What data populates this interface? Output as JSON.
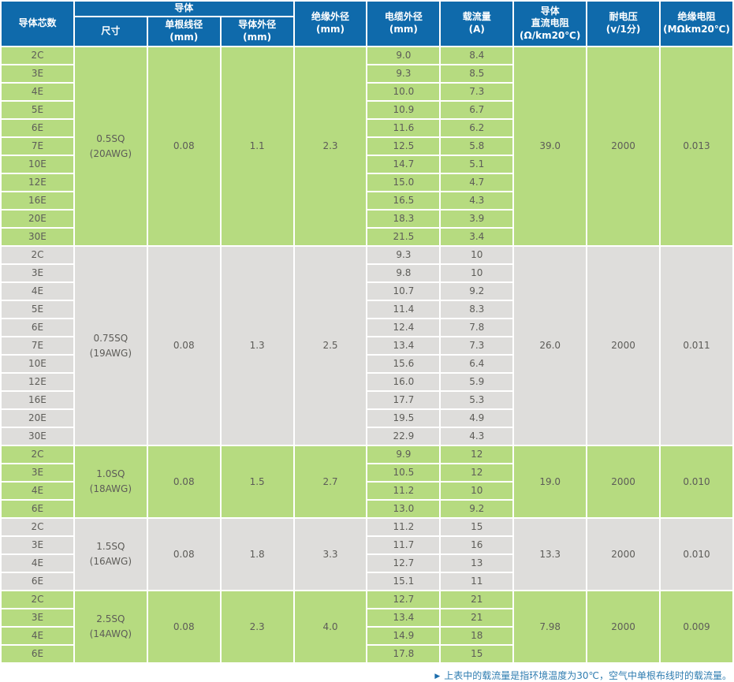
{
  "colors": {
    "header_blue": "#0f6aab",
    "green_row": "#b6db80",
    "gray_row": "#dedddb",
    "cell_text": "#5d5c58",
    "footnote_blue": "#2e7cb0"
  },
  "table": {
    "header": {
      "cores": "导体芯数",
      "conductor_group": "导体",
      "size": "尺寸",
      "strand_dia": "单根线径\n(mm)",
      "conductor_od": "导体外径\n(mm)",
      "insulation_od": "绝缘外径\n(mm)",
      "cable_od": "电缆外径\n(mm)",
      "ampacity": "载流量\n(A)",
      "dc_resistance": "导体\n直流电阻\n(Ω/km20℃)",
      "voltage": "耐电压\n(v/1分)",
      "insulation_res": "绝缘电阻\n(MΩkm20℃)"
    },
    "groups": [
      {
        "theme": "green",
        "size": "0.5SQ",
        "awg": "(20AWG)",
        "strand_dia": "0.08",
        "conductor_od": "1.1",
        "insulation_od": "2.3",
        "dc_resistance": "39.0",
        "voltage": "2000",
        "insulation_res": "0.013",
        "rows": [
          {
            "cores": "2C",
            "cable_od": "9.0",
            "ampacity": "8.4"
          },
          {
            "cores": "3E",
            "cable_od": "9.3",
            "ampacity": "8.5"
          },
          {
            "cores": "4E",
            "cable_od": "10.0",
            "ampacity": "7.3"
          },
          {
            "cores": "5E",
            "cable_od": "10.9",
            "ampacity": "6.7"
          },
          {
            "cores": "6E",
            "cable_od": "11.6",
            "ampacity": "6.2"
          },
          {
            "cores": "7E",
            "cable_od": "12.5",
            "ampacity": "5.8"
          },
          {
            "cores": "10E",
            "cable_od": "14.7",
            "ampacity": "5.1"
          },
          {
            "cores": "12E",
            "cable_od": "15.0",
            "ampacity": "4.7"
          },
          {
            "cores": "16E",
            "cable_od": "16.5",
            "ampacity": "4.3"
          },
          {
            "cores": "20E",
            "cable_od": "18.3",
            "ampacity": "3.9"
          },
          {
            "cores": "30E",
            "cable_od": "21.5",
            "ampacity": "3.4"
          }
        ]
      },
      {
        "theme": "gray",
        "size": "0.75SQ",
        "awg": "(19AWG)",
        "strand_dia": "0.08",
        "conductor_od": "1.3",
        "insulation_od": "2.5",
        "dc_resistance": "26.0",
        "voltage": "2000",
        "insulation_res": "0.011",
        "rows": [
          {
            "cores": "2C",
            "cable_od": "9.3",
            "ampacity": "10"
          },
          {
            "cores": "3E",
            "cable_od": "9.8",
            "ampacity": "10"
          },
          {
            "cores": "4E",
            "cable_od": "10.7",
            "ampacity": "9.2"
          },
          {
            "cores": "5E",
            "cable_od": "11.4",
            "ampacity": "8.3"
          },
          {
            "cores": "6E",
            "cable_od": "12.4",
            "ampacity": "7.8"
          },
          {
            "cores": "7E",
            "cable_od": "13.4",
            "ampacity": "7.3"
          },
          {
            "cores": "10E",
            "cable_od": "15.6",
            "ampacity": "6.4"
          },
          {
            "cores": "12E",
            "cable_od": "16.0",
            "ampacity": "5.9"
          },
          {
            "cores": "16E",
            "cable_od": "17.7",
            "ampacity": "5.3"
          },
          {
            "cores": "20E",
            "cable_od": "19.5",
            "ampacity": "4.9"
          },
          {
            "cores": "30E",
            "cable_od": "22.9",
            "ampacity": "4.3"
          }
        ]
      },
      {
        "theme": "green",
        "size": "1.0SQ",
        "awg": "(18AWG)",
        "strand_dia": "0.08",
        "conductor_od": "1.5",
        "insulation_od": "2.7",
        "dc_resistance": "19.0",
        "voltage": "2000",
        "insulation_res": "0.010",
        "rows": [
          {
            "cores": "2C",
            "cable_od": "9.9",
            "ampacity": "12"
          },
          {
            "cores": "3E",
            "cable_od": "10.5",
            "ampacity": "12"
          },
          {
            "cores": "4E",
            "cable_od": "11.2",
            "ampacity": "10"
          },
          {
            "cores": "6E",
            "cable_od": "13.0",
            "ampacity": "9.2"
          }
        ]
      },
      {
        "theme": "gray",
        "size": "1.5SQ",
        "awg": "(16AWG)",
        "strand_dia": "0.08",
        "conductor_od": "1.8",
        "insulation_od": "3.3",
        "dc_resistance": "13.3",
        "voltage": "2000",
        "insulation_res": "0.010",
        "rows": [
          {
            "cores": "2C",
            "cable_od": "11.2",
            "ampacity": "15"
          },
          {
            "cores": "3E",
            "cable_od": "11.7",
            "ampacity": "16"
          },
          {
            "cores": "4E",
            "cable_od": "12.7",
            "ampacity": "13"
          },
          {
            "cores": "6E",
            "cable_od": "15.1",
            "ampacity": "11"
          }
        ]
      },
      {
        "theme": "green",
        "size": "2.5SQ",
        "awg": "(14AWQ)",
        "strand_dia": "0.08",
        "conductor_od": "2.3",
        "insulation_od": "4.0",
        "dc_resistance": "7.98",
        "voltage": "2000",
        "insulation_res": "0.009",
        "rows": [
          {
            "cores": "2C",
            "cable_od": "12.7",
            "ampacity": "21"
          },
          {
            "cores": "3E",
            "cable_od": "13.4",
            "ampacity": "21"
          },
          {
            "cores": "4E",
            "cable_od": "14.9",
            "ampacity": "18"
          },
          {
            "cores": "6E",
            "cable_od": "17.8",
            "ampacity": "15"
          }
        ]
      }
    ]
  },
  "footnote": {
    "marker": "▶",
    "text": "上表中的载流量是指环境温度为30℃，空气中单根布线时的载流量。"
  }
}
